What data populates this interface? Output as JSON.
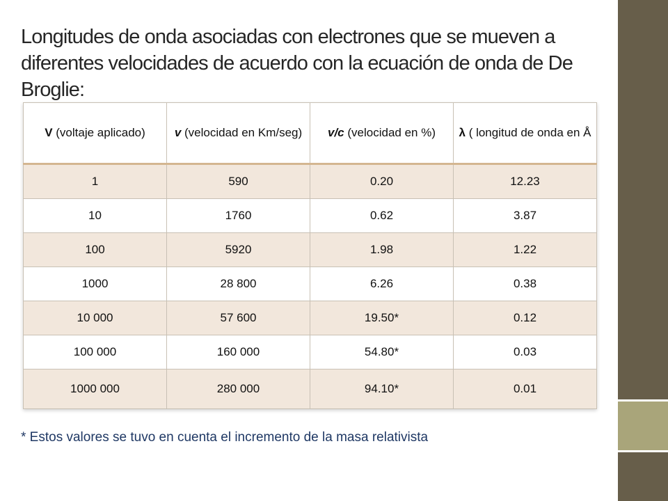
{
  "slide": {
    "title": "Longitudes de onda asociadas con electrones que se mueven a diferentes velocidades de acuerdo con la ecuación de onda de De Broglie:",
    "footnote": "* Estos valores se tuvo en cuenta el incremento de la masa relativista"
  },
  "table": {
    "headers": [
      {
        "symbol": "V",
        "text": " (voltaje aplicado)"
      },
      {
        "symbol": "v",
        "text": "  (velocidad en Km/seg)"
      },
      {
        "symbol": "v/c",
        "text": " (velocidad en %)"
      },
      {
        "symbol": "λ",
        "text": " ( longitud de onda en Å"
      }
    ],
    "rows": [
      [
        "1",
        "590",
        "0.20",
        "12.23"
      ],
      [
        "10",
        "1760",
        "0.62",
        "3.87"
      ],
      [
        "100",
        "5920",
        "1.98",
        "1.22"
      ],
      [
        "1000",
        "28 800",
        "6.26",
        "0.38"
      ],
      [
        "10 000",
        "57 600",
        "19.50*",
        "0.12"
      ],
      [
        "100 000",
        "160 000",
        "54.80*",
        "0.03"
      ],
      [
        "1000 000",
        "280 000",
        "94.10*",
        "0.01"
      ]
    ]
  },
  "colors": {
    "sidebar_dark": "#675e4a",
    "sidebar_light": "#a9a57a",
    "row_band": "#f2e7dc",
    "header_rule": "#d4b690",
    "footnote_text": "#1f3864"
  }
}
